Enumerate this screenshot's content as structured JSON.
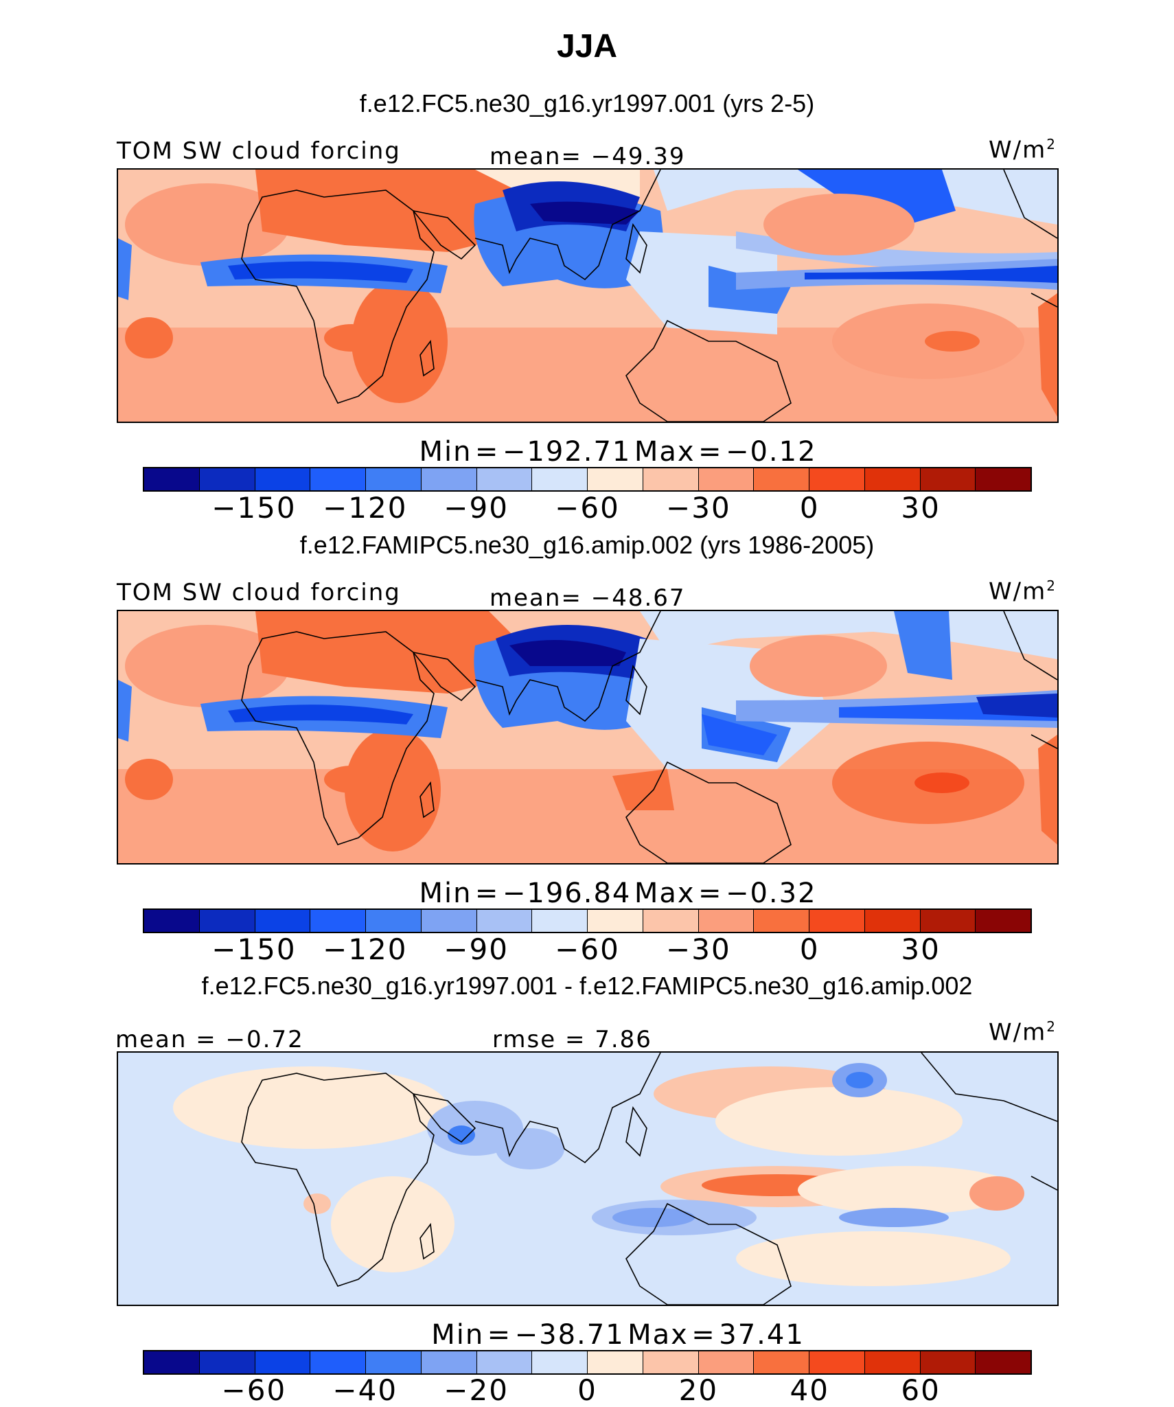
{
  "title": "JJA",
  "units": "W/m",
  "units_exp": "2",
  "colors": [
    "#08088c",
    "#0c2bbf",
    "#0b42e6",
    "#1f5efb",
    "#3f7ef5",
    "#7ea3f3",
    "#a8c1f5",
    "#d6e5fb",
    "#feebd8",
    "#fcc5aa",
    "#fb9e7d",
    "#f8703e",
    "#f44a1e",
    "#e0320a",
    "#b01b06",
    "#8a0505"
  ],
  "chart_data": [
    {
      "type": "heatmap",
      "title": "f.e12.FC5.ne30_g16.yr1997.001 (yrs 2-5)",
      "variable": "TOM  SW  cloud  forcing",
      "stat": "mean=  −49.39",
      "min_label": "Min",
      "min_value": "−192.71",
      "max_label": "Max",
      "max_value": "−0.12",
      "eq": "=",
      "mean": -49.39,
      "min": -192.71,
      "max": -0.12,
      "colorbar_ticks": [
        "−150",
        "−120",
        "−90",
        "−60",
        "−30",
        "0",
        "30"
      ]
    },
    {
      "type": "heatmap",
      "title": "f.e12.FAMIPC5.ne30_g16.amip.002 (yrs 1986-2005)",
      "variable": "TOM  SW  cloud  forcing",
      "stat": "mean=  −48.67",
      "min_label": "Min",
      "min_value": "−196.84",
      "max_label": "Max",
      "max_value": "−0.32",
      "eq": "=",
      "mean": -48.67,
      "min": -196.84,
      "max": -0.32,
      "colorbar_ticks": [
        "−150",
        "−120",
        "−90",
        "−60",
        "−30",
        "0",
        "30"
      ]
    },
    {
      "type": "heatmap",
      "title": "f.e12.FC5.ne30_g16.yr1997.001 - f.e12.FAMIPC5.ne30_g16.amip.002",
      "left_stat": "mean  =   −0.72",
      "stat": "rmse  =    7.86",
      "min_label": "Min",
      "min_value": "−38.71",
      "max_label": "Max",
      "max_value": "37.41",
      "eq": "=",
      "mean": -0.72,
      "rmse": 7.86,
      "min": -38.71,
      "max": 37.41,
      "colorbar_ticks": [
        "−60",
        "−40",
        "−20",
        "0",
        "20",
        "40",
        "60"
      ]
    }
  ]
}
